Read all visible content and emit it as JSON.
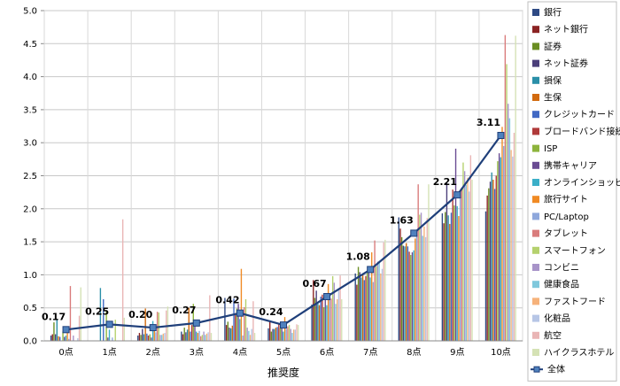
{
  "chart_data": {
    "type": "bar",
    "title": "",
    "xlabel": "推奨度",
    "ylabel": "",
    "ylim": [
      0,
      5.0
    ],
    "yticks": [
      "0.0",
      "0.5",
      "1.0",
      "1.5",
      "2.0",
      "2.5",
      "3.0",
      "3.5",
      "4.0",
      "4.5",
      "5.0"
    ],
    "grid": "horizontal",
    "legend_position": "right",
    "categories": [
      "0点",
      "1点",
      "2点",
      "3点",
      "4点",
      "5点",
      "6点",
      "7点",
      "8点",
      "9点",
      "10点"
    ],
    "series": [
      {
        "name": "銀行",
        "color": "#2E4A84",
        "values": [
          0.08,
          0.0,
          0.08,
          0.14,
          0.65,
          0.19,
          0.55,
          1.02,
          1.87,
          1.93,
          1.96
        ]
      },
      {
        "name": "ネット銀行",
        "color": "#8B2323",
        "values": [
          0.1,
          0.0,
          0.12,
          0.1,
          0.24,
          0.3,
          0.92,
          0.85,
          1.7,
          1.78,
          2.2
        ]
      },
      {
        "name": "証券",
        "color": "#6B8E23",
        "values": [
          0.28,
          0.0,
          0.09,
          0.2,
          0.29,
          0.14,
          0.65,
          1.12,
          1.57,
          1.95,
          2.31
        ]
      },
      {
        "name": "ネット証券",
        "color": "#4B3F7A",
        "values": [
          0.1,
          0.0,
          0.18,
          0.13,
          0.2,
          0.18,
          0.76,
          1.04,
          1.44,
          2.39,
          2.41
        ]
      },
      {
        "name": "損保",
        "color": "#2A8FA8",
        "values": [
          0.33,
          0.8,
          0.1,
          0.17,
          0.19,
          0.18,
          0.58,
          0.96,
          1.43,
          1.9,
          2.55
        ]
      },
      {
        "name": "生保",
        "color": "#D26A0E",
        "values": [
          0.07,
          0.0,
          0.49,
          0.5,
          0.23,
          0.2,
          0.54,
          1.0,
          1.48,
          1.77,
          2.44
        ]
      },
      {
        "name": "クレジットカード",
        "color": "#4169C4",
        "values": [
          0.06,
          0.63,
          0.11,
          0.14,
          0.64,
          0.21,
          0.67,
          0.92,
          1.43,
          1.94,
          2.3
        ]
      },
      {
        "name": "ブロードバンド接続",
        "color": "#B03A3A",
        "values": [
          0.0,
          0.0,
          0.08,
          0.24,
          0.42,
          0.25,
          0.7,
          0.98,
          1.35,
          2.29,
          2.5
        ]
      },
      {
        "name": "ISP",
        "color": "#8DB43C",
        "values": [
          0.14,
          0.45,
          0.1,
          0.56,
          0.49,
          0.19,
          0.51,
          1.03,
          1.3,
          2.05,
          2.72
        ]
      },
      {
        "name": "携帯キャリア",
        "color": "#6A4C93",
        "values": [
          0.06,
          0.05,
          0.05,
          0.23,
          0.56,
          0.19,
          0.69,
          1.06,
          1.34,
          2.91,
          2.84
        ]
      },
      {
        "name": "オンラインショッピング",
        "color": "#3BAFC8",
        "values": [
          0.08,
          0.17,
          0.3,
          0.14,
          0.33,
          0.14,
          0.54,
          0.96,
          1.37,
          2.04,
          2.78
        ]
      },
      {
        "name": "旅行サイト",
        "color": "#F08A24",
        "values": [
          0.12,
          0.0,
          0.18,
          0.12,
          1.09,
          0.36,
          0.86,
          1.34,
          1.55,
          1.89,
          3.24
        ]
      },
      {
        "name": "PC/Laptop",
        "color": "#8FA8DC",
        "values": [
          0.03,
          0.05,
          0.13,
          0.15,
          0.08,
          0.18,
          0.68,
          0.89,
          1.6,
          2.18,
          2.95
        ]
      },
      {
        "name": "タブレット",
        "color": "#D97C7C",
        "values": [
          0.83,
          0.0,
          0.44,
          0.07,
          0.51,
          0.22,
          0.64,
          1.52,
          2.37,
          2.32,
          4.63
        ]
      },
      {
        "name": "スマートフォン",
        "color": "#B5D16E",
        "values": [
          0.0,
          0.32,
          0.43,
          0.09,
          0.63,
          0.24,
          0.98,
          1.13,
          1.91,
          2.7,
          4.19
        ]
      },
      {
        "name": "コンビニ",
        "color": "#A894C9",
        "values": [
          0.08,
          0.0,
          0.09,
          0.14,
          0.2,
          0.18,
          0.88,
          1.2,
          1.94,
          2.57,
          3.59
        ]
      },
      {
        "name": "健康食品",
        "color": "#7FC8DC",
        "values": [
          0.0,
          0.0,
          0.09,
          0.09,
          0.15,
          0.12,
          0.56,
          1.21,
          1.59,
          2.36,
          3.37
        ]
      },
      {
        "name": "ファストフード",
        "color": "#F6B27A",
        "values": [
          0.0,
          0.0,
          0.11,
          0.11,
          0.09,
          0.17,
          0.63,
          1.02,
          1.73,
          2.47,
          2.89
        ]
      },
      {
        "name": "化粧品",
        "color": "#B7C6E6",
        "values": [
          0.04,
          0.0,
          0.12,
          0.13,
          0.18,
          0.17,
          0.78,
          1.09,
          1.57,
          2.26,
          2.79
        ]
      },
      {
        "name": "航空",
        "color": "#E9B5B5",
        "values": [
          0.38,
          1.84,
          0.46,
          0.69,
          0.6,
          0.25,
          0.99,
          1.49,
          1.86,
          2.81,
          3.15
        ]
      },
      {
        "name": "ハイクラスホテル",
        "color": "#D5E2B5",
        "values": [
          0.81,
          0.35,
          0.52,
          0.12,
          0.12,
          0.24,
          0.63,
          1.53,
          2.37,
          2.44,
          4.62
        ]
      }
    ],
    "line_series": {
      "name": "全体",
      "color": "#1F3F7A",
      "values": [
        0.17,
        0.25,
        0.2,
        0.27,
        0.42,
        0.24,
        0.67,
        1.08,
        1.63,
        2.21,
        3.11
      ],
      "labels": [
        "0.17",
        "0.25",
        "0.20",
        "0.27",
        "0.42",
        "0.24",
        "0.67",
        "1.08",
        "1.63",
        "2.21",
        "3.11"
      ]
    }
  }
}
